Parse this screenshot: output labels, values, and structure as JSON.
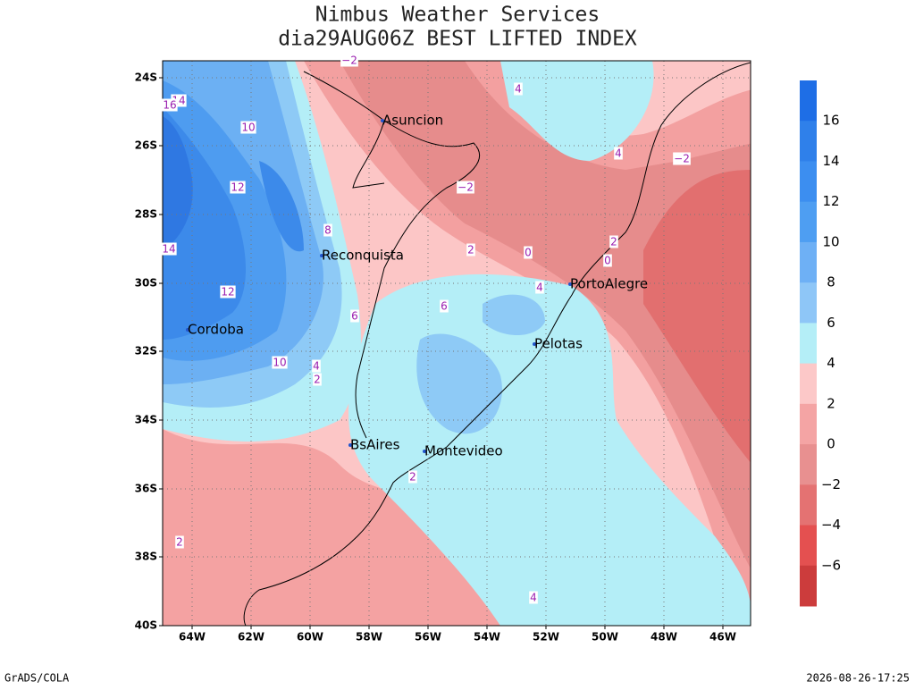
{
  "header": {
    "title": "Nimbus Weather Services",
    "subtitle": "dia29AUG06Z BEST LIFTED INDEX"
  },
  "map": {
    "lat_labels": [
      "24S",
      "26S",
      "28S",
      "30S",
      "32S",
      "34S",
      "36S",
      "38S",
      "40S"
    ],
    "lon_labels": [
      "64W",
      "62W",
      "60W",
      "58W",
      "56W",
      "54W",
      "52W",
      "50W",
      "48W",
      "46W"
    ],
    "cities": [
      "Asuncion",
      "Reconquista",
      "PortoAlegre",
      "Cordoba",
      "Pelotas",
      "BsAires",
      "Montevideo"
    ],
    "contour_labels": [
      "−2",
      "4",
      "14",
      "16",
      "10",
      "4",
      "−2",
      "12",
      "−2",
      "8",
      "14",
      "2",
      "0",
      "2",
      "0",
      "4",
      "12",
      "6",
      "6",
      "10",
      "4",
      "2",
      "2",
      "2",
      "4"
    ]
  },
  "colorbar": {
    "labels": [
      "16",
      "14",
      "12",
      "10",
      "8",
      "6",
      "4",
      "2",
      "0",
      "−2",
      "−4",
      "−6"
    ]
  },
  "footer": {
    "left": "GrADS/COLA",
    "right": "2026-08-26-17:25"
  }
}
